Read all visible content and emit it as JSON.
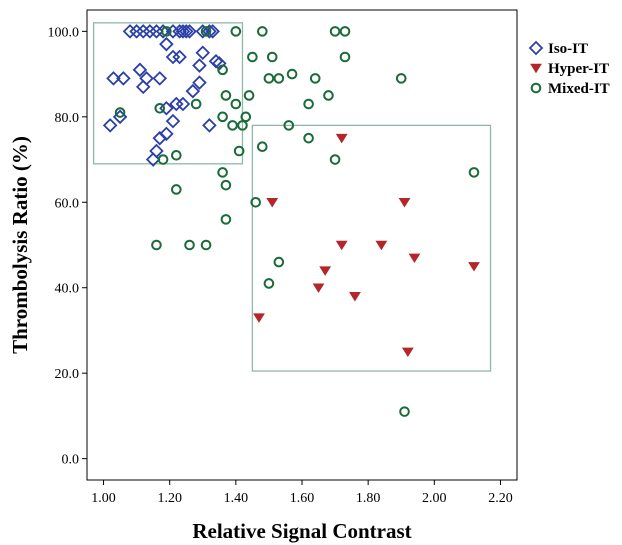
{
  "chart_data": {
    "type": "scatter",
    "title": "",
    "xlabel": "Relative Signal Contrast",
    "ylabel": "Thrombolysis Ratio (%)",
    "xlim": [
      0.95,
      2.25
    ],
    "ylim": [
      -5,
      105
    ],
    "xticks": [
      "1.00",
      "1.20",
      "1.40",
      "1.60",
      "1.80",
      "2.00",
      "2.20"
    ],
    "yticks": [
      "0.0",
      "20.0",
      "40.0",
      "60.0",
      "80.0",
      "100.0"
    ],
    "grid": false,
    "legend_position": "right",
    "series": [
      {
        "name": "Iso-IT",
        "marker": "diamond",
        "color": "#2b3fa8",
        "points": [
          [
            1.08,
            100
          ],
          [
            1.1,
            100
          ],
          [
            1.12,
            100
          ],
          [
            1.14,
            100
          ],
          [
            1.16,
            100
          ],
          [
            1.18,
            100
          ],
          [
            1.21,
            100
          ],
          [
            1.23,
            100
          ],
          [
            1.24,
            100
          ],
          [
            1.25,
            100
          ],
          [
            1.26,
            100
          ],
          [
            1.3,
            100
          ],
          [
            1.32,
            100
          ],
          [
            1.33,
            100
          ],
          [
            1.19,
            97
          ],
          [
            1.21,
            94
          ],
          [
            1.23,
            94
          ],
          [
            1.3,
            95
          ],
          [
            1.29,
            92
          ],
          [
            1.34,
            93
          ],
          [
            1.35,
            92.5
          ],
          [
            1.03,
            89
          ],
          [
            1.06,
            89
          ],
          [
            1.11,
            91
          ],
          [
            1.13,
            89
          ],
          [
            1.17,
            89
          ],
          [
            1.12,
            87
          ],
          [
            1.27,
            86
          ],
          [
            1.29,
            88
          ],
          [
            1.22,
            83
          ],
          [
            1.24,
            83
          ],
          [
            1.19,
            82
          ],
          [
            1.21,
            79
          ],
          [
            1.02,
            78
          ],
          [
            1.05,
            80
          ],
          [
            1.19,
            76
          ],
          [
            1.17,
            75
          ],
          [
            1.16,
            72
          ],
          [
            1.15,
            70
          ],
          [
            1.32,
            78
          ]
        ]
      },
      {
        "name": "Hyper-IT",
        "marker": "triangle-down",
        "color": "#b3262a",
        "points": [
          [
            1.72,
            75
          ],
          [
            1.51,
            60
          ],
          [
            1.91,
            60
          ],
          [
            1.72,
            50
          ],
          [
            1.84,
            50
          ],
          [
            1.94,
            47
          ],
          [
            1.67,
            44
          ],
          [
            2.12,
            45
          ],
          [
            1.65,
            40
          ],
          [
            1.76,
            38
          ],
          [
            1.47,
            33
          ],
          [
            1.92,
            25
          ]
        ]
      },
      {
        "name": "Mixed-IT",
        "marker": "circle",
        "color": "#1b6b3a",
        "points": [
          [
            1.19,
            100
          ],
          [
            1.31,
            100
          ],
          [
            1.4,
            100
          ],
          [
            1.48,
            100
          ],
          [
            1.7,
            100
          ],
          [
            1.73,
            100
          ],
          [
            1.45,
            94
          ],
          [
            1.51,
            94
          ],
          [
            1.73,
            94
          ],
          [
            1.36,
            91
          ],
          [
            1.57,
            90
          ],
          [
            1.5,
            89
          ],
          [
            1.53,
            89
          ],
          [
            1.64,
            89
          ],
          [
            1.9,
            89
          ],
          [
            1.37,
            85
          ],
          [
            1.44,
            85
          ],
          [
            1.68,
            85
          ],
          [
            1.4,
            83
          ],
          [
            1.62,
            83
          ],
          [
            1.28,
            83
          ],
          [
            1.43,
            80
          ],
          [
            1.05,
            81
          ],
          [
            1.17,
            82
          ],
          [
            1.36,
            80
          ],
          [
            1.39,
            78
          ],
          [
            1.42,
            78
          ],
          [
            1.56,
            78
          ],
          [
            1.62,
            75
          ],
          [
            1.7,
            70
          ],
          [
            1.48,
            73
          ],
          [
            1.22,
            71
          ],
          [
            1.18,
            70
          ],
          [
            1.41,
            72
          ],
          [
            1.36,
            67
          ],
          [
            1.37,
            64
          ],
          [
            1.22,
            63
          ],
          [
            1.46,
            60
          ],
          [
            2.12,
            67
          ],
          [
            1.16,
            50
          ],
          [
            1.26,
            50
          ],
          [
            1.31,
            50
          ],
          [
            1.37,
            56
          ],
          [
            1.53,
            46
          ],
          [
            1.5,
            41
          ],
          [
            1.91,
            11
          ]
        ]
      }
    ],
    "boxes": [
      {
        "x": [
          0.97,
          1.42
        ],
        "y": [
          69,
          102
        ]
      },
      {
        "x": [
          1.45,
          2.17
        ],
        "y": [
          20.5,
          78
        ]
      }
    ]
  }
}
